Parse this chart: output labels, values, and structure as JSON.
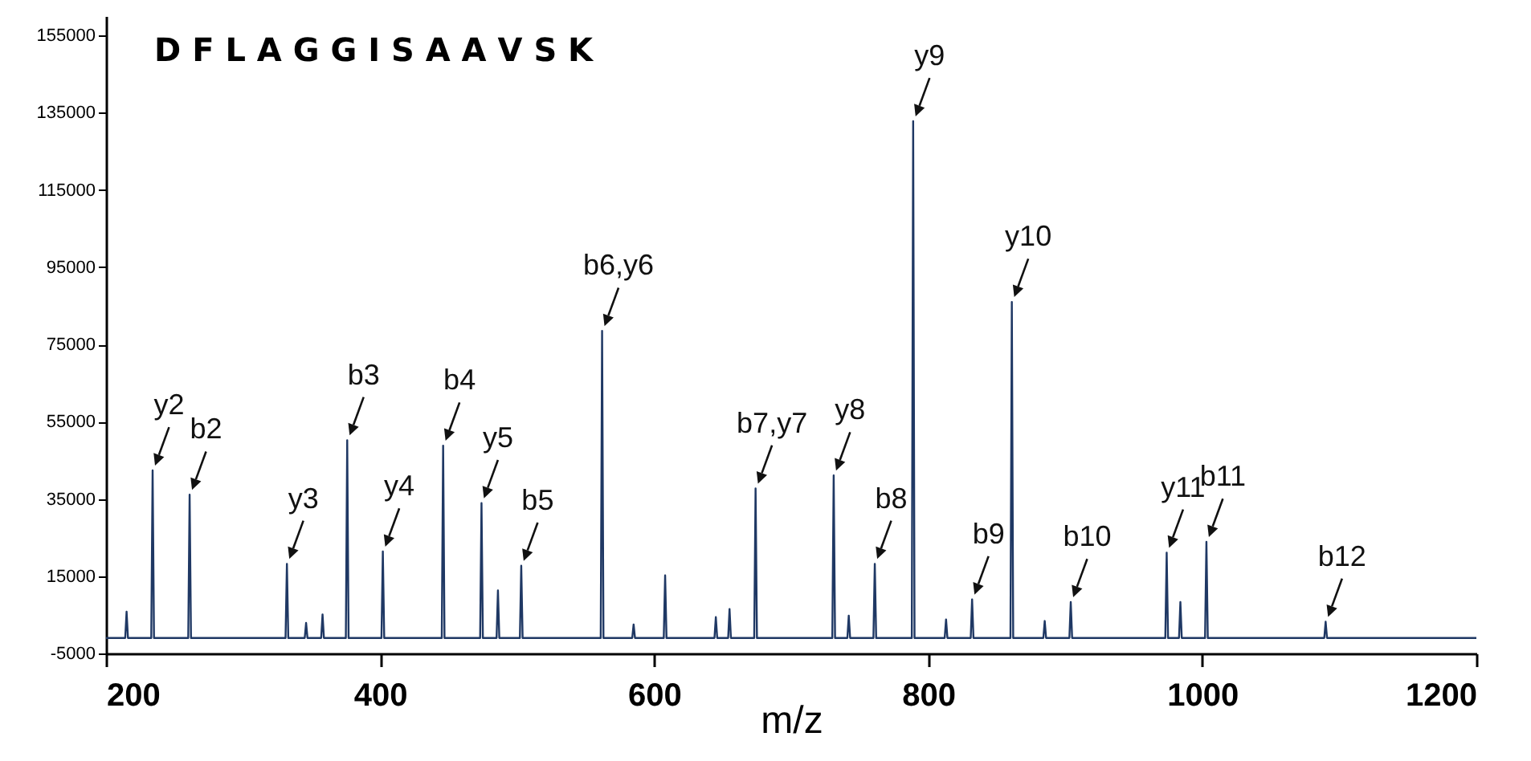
{
  "chart_data": {
    "type": "line",
    "xlabel": "m/z",
    "xlim": [
      200,
      1200
    ],
    "xticks": [
      200,
      400,
      600,
      800,
      1000,
      1200
    ],
    "ylim": [
      -5000,
      160000
    ],
    "yticks": [
      -5000,
      15000,
      35000,
      55000,
      75000,
      95000,
      115000,
      135000,
      155000
    ],
    "grid": false,
    "marker": "none",
    "line_style": "solid",
    "series": [
      {
        "color": "#1f3864",
        "x": [
          200,
          214,
          215,
          216,
          233,
          234,
          235,
          260,
          261,
          262,
          331,
          332,
          333,
          345,
          346,
          347,
          357,
          358,
          359,
          375,
          376,
          377,
          401,
          402,
          403,
          445,
          446,
          447,
          473,
          474,
          475,
          485,
          486,
          487,
          502,
          503,
          504,
          561,
          562,
          563,
          584,
          585,
          586,
          607,
          608,
          609,
          644,
          645,
          646,
          654,
          655,
          656,
          673,
          674,
          675,
          730,
          731,
          732,
          741,
          742,
          743,
          760,
          761,
          762,
          788,
          789,
          790,
          812,
          813,
          814,
          831,
          832,
          833,
          860,
          861,
          862,
          884,
          885,
          886,
          903,
          904,
          905,
          973,
          974,
          975,
          983,
          984,
          985,
          1002,
          1003,
          1004,
          1089,
          1090,
          1091,
          1200
        ],
        "values": [
          -1000,
          -1000,
          5800,
          -1000,
          -1000,
          42400,
          -1000,
          -1000,
          36100,
          -1000,
          -1000,
          18200,
          -1000,
          -1000,
          2900,
          -1000,
          -1000,
          5100,
          -1000,
          -1000,
          50200,
          -1000,
          -1000,
          21400,
          -1000,
          -1000,
          48800,
          -1000,
          -1000,
          33900,
          -1000,
          -1000,
          11300,
          -1000,
          -1000,
          17700,
          -1000,
          -1000,
          78500,
          -1000,
          -1000,
          2500,
          -1000,
          -1000,
          15200,
          -1000,
          -1000,
          4400,
          -1000,
          -1000,
          6500,
          -1000,
          -1000,
          37700,
          -1000,
          -1000,
          41100,
          -1000,
          -1000,
          4800,
          -1000,
          -1000,
          18200,
          -1000,
          -1000,
          132800,
          -1000,
          -1000,
          3800,
          -1000,
          -1000,
          9000,
          -1000,
          -1000,
          86000,
          -1000,
          -1000,
          3400,
          -1000,
          -1000,
          8300,
          -1000,
          -1000,
          21100,
          -1000,
          -1000,
          8300,
          -1000,
          -1000,
          23900,
          -1000,
          -1000,
          3200,
          -1000,
          -1000
        ]
      }
    ],
    "annotations": [
      "D F L A G G I S A A V S K",
      {
        "text": "y2",
        "x": 234,
        "y": 42400
      },
      {
        "text": "b2",
        "x": 261,
        "y": 36100
      },
      {
        "text": "y3",
        "x": 332,
        "y": 18200
      },
      {
        "text": "b3",
        "x": 376,
        "y": 50200
      },
      {
        "text": "y4",
        "x": 402,
        "y": 21400
      },
      {
        "text": "b4",
        "x": 446,
        "y": 48800
      },
      {
        "text": "y5",
        "x": 474,
        "y": 33900
      },
      {
        "text": "b5",
        "x": 503,
        "y": 17700
      },
      {
        "text": "b6,y6",
        "x": 562,
        "y": 78500
      },
      {
        "text": "b7,y7",
        "x": 674,
        "y": 37700
      },
      {
        "text": "y8",
        "x": 731,
        "y": 41100
      },
      {
        "text": "b8",
        "x": 761,
        "y": 18200
      },
      {
        "text": "y9",
        "x": 789,
        "y": 132800
      },
      {
        "text": "b9",
        "x": 832,
        "y": 9000
      },
      {
        "text": "y10",
        "x": 861,
        "y": 86000
      },
      {
        "text": "b10",
        "x": 904,
        "y": 8300
      },
      {
        "text": "y11",
        "x": 974,
        "y": 21100
      },
      {
        "text": "b11",
        "x": 1003,
        "y": 23900
      },
      {
        "text": "b12",
        "x": 1090,
        "y": 3200
      }
    ]
  }
}
